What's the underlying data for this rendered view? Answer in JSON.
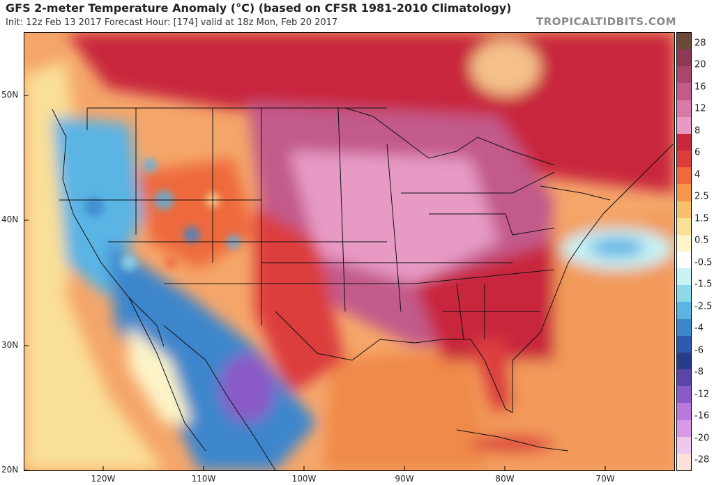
{
  "header": {
    "title": "GFS 2-meter Temperature Anomaly (°C) (based on CFSR 1981-2010 Climatology)",
    "subtitle": "Init: 12z Feb 13 2017   Forecast Hour: [174]   valid at 18z Mon, Feb 20 2017",
    "site": "TROPICALTIDBITS.COM"
  },
  "map": {
    "region": "Contiguous United States and surroundings",
    "latitude_labels": [
      "50N",
      "40N",
      "30N",
      "20N"
    ],
    "longitude_labels": [
      "120W",
      "110W",
      "100W",
      "90W",
      "80W",
      "70W"
    ]
  },
  "colorbar": {
    "labels": [
      "28",
      "20",
      "16",
      "12",
      "8",
      "6",
      "4",
      "2.5",
      "1.5",
      "0.5",
      "-0.5",
      "-1.5",
      "-2.5",
      "-4",
      "-6",
      "-8",
      "-12",
      "-16",
      "-20",
      "-28"
    ],
    "colors": [
      "#6b4a3a",
      "#8c3a55",
      "#a8466e",
      "#c25a8a",
      "#d67aa8",
      "#e79ac4",
      "#c8283e",
      "#dc3c3c",
      "#ee6a3c",
      "#f5964a",
      "#f8bf6c",
      "#fadf96",
      "#fdf4c8",
      "#ffffff",
      "#c8f2f4",
      "#8ed8ec",
      "#5ab4e4",
      "#3c86cc",
      "#2c5ab0",
      "#283c8c",
      "#5a46a8",
      "#8a5ac8",
      "#b878dc",
      "#d89ae6",
      "#f0c8ee",
      "#fbe0dc"
    ]
  }
}
